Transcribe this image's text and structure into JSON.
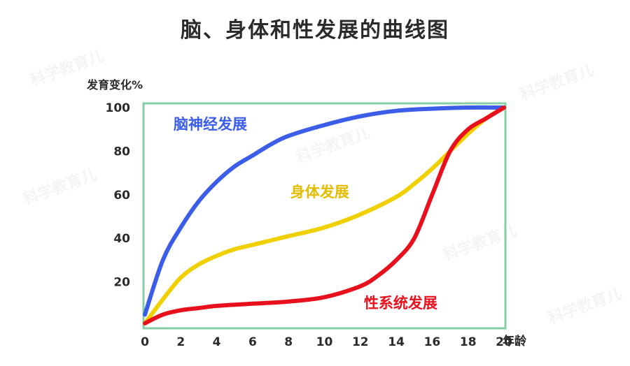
{
  "title": "脑、身体和性发展的曲线图",
  "watermark": "科学教育儿",
  "chart_data": {
    "type": "line",
    "ylabel": "发育变化%",
    "xlabel": "年龄",
    "xlim": [
      0,
      20
    ],
    "ylim": [
      0,
      100
    ],
    "x_ticks": [
      "0",
      "2",
      "4",
      "6",
      "8",
      "10",
      "12",
      "14",
      "16",
      "18",
      "20"
    ],
    "y_ticks": [
      "20",
      "40",
      "60",
      "80",
      "100"
    ],
    "frame_color": "#86cfa6",
    "series": [
      {
        "name": "脑神经发展",
        "color": "#3b5de7",
        "label_color": "#3b5de7",
        "x": [
          0,
          1,
          2,
          3,
          4,
          5,
          6,
          7,
          8,
          10,
          12,
          14,
          16,
          18,
          20
        ],
        "y": [
          5,
          30,
          45,
          57,
          66,
          73,
          78,
          83,
          87,
          92,
          96,
          98.5,
          99.5,
          100,
          100
        ]
      },
      {
        "name": "身体发展",
        "color": "#f0d000",
        "label_color": "#e3bd00",
        "x": [
          0,
          1,
          2,
          3,
          4,
          5,
          6,
          7,
          8,
          10,
          12,
          14,
          15,
          16,
          17,
          18,
          19,
          20
        ],
        "y": [
          1,
          12,
          22,
          28,
          32,
          35,
          37,
          39,
          41,
          45,
          51,
          59,
          65,
          72,
          80,
          88,
          95,
          100
        ]
      },
      {
        "name": "性系统发展",
        "color": "#e8101c",
        "label_color": "#e8101c",
        "x": [
          0,
          1,
          2,
          3,
          4,
          6,
          8,
          10,
          12,
          13,
          14,
          15,
          16,
          17,
          18,
          19,
          20
        ],
        "y": [
          1,
          5,
          7,
          8,
          9,
          10,
          11,
          13,
          18,
          23,
          30,
          40,
          60,
          80,
          90,
          95,
          100
        ]
      }
    ]
  }
}
